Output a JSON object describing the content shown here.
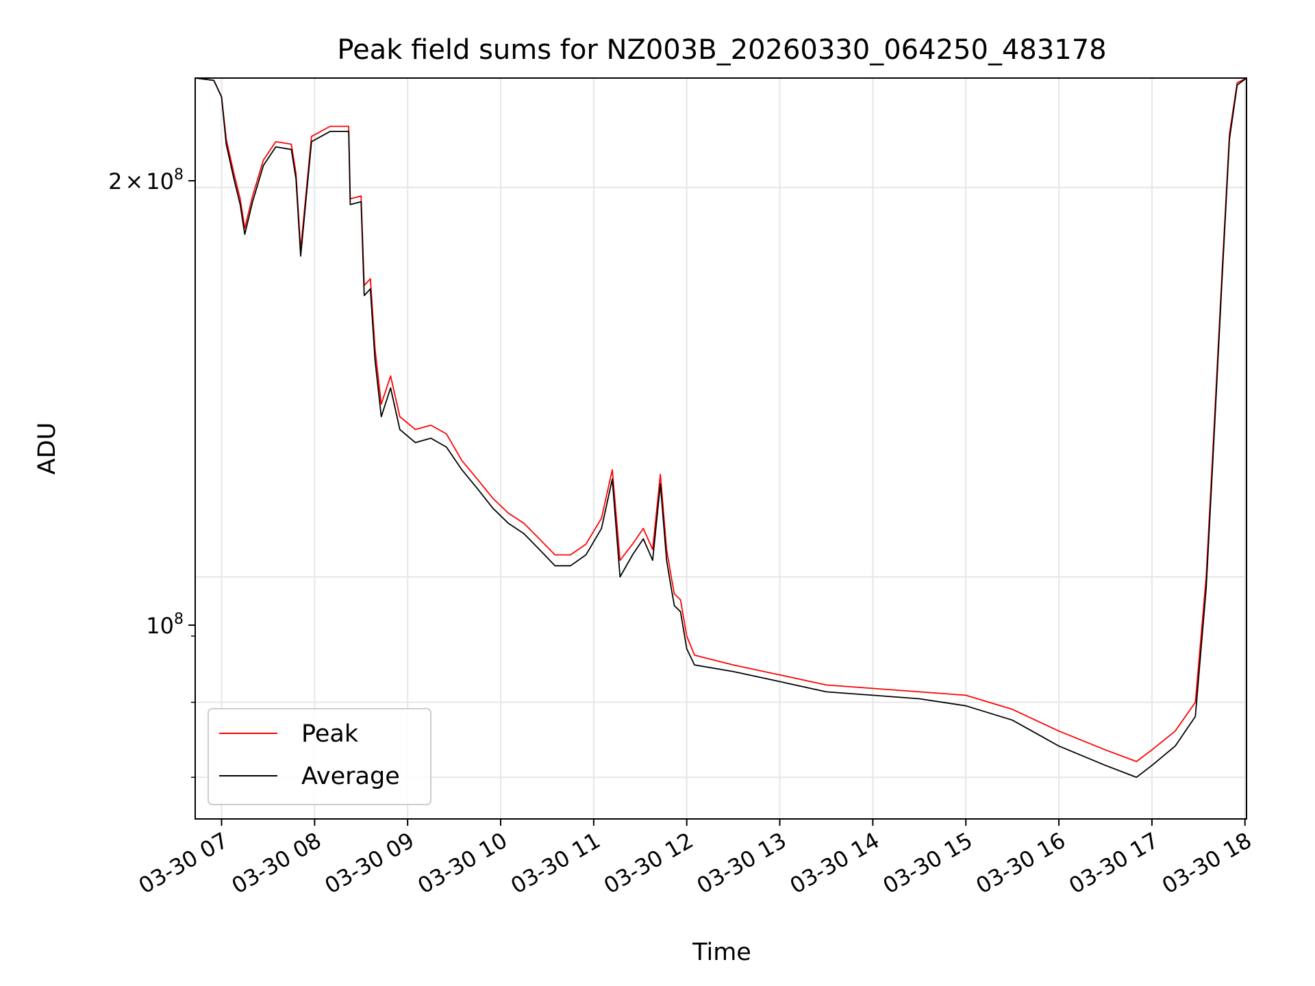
{
  "chart_data": {
    "type": "line",
    "title": "Peak field sums for NZ003B_20260330_064250_483178",
    "xlabel": "Time",
    "ylabel": "ADU",
    "yscale": "log",
    "xlim": [
      "2026-03-30 06:43",
      "2026-03-30 18:01"
    ],
    "ylim": [
      65000000,
      243000000
    ],
    "grid": true,
    "legend_position": "lower-left",
    "x_ticks": [
      "03-30 07",
      "03-30 08",
      "03-30 09",
      "03-30 10",
      "03-30 11",
      "03-30 12",
      "03-30 13",
      "03-30 14",
      "03-30 15",
      "03-30 16",
      "03-30 17",
      "03-30 18"
    ],
    "y_tick_labels": {
      "major_2e8_base": "2",
      "major_2e8_times": "×",
      "major_2e8_mantissa": "10",
      "major_2e8_exp": "8",
      "major_1e8_mantissa": "10",
      "major_1e8_exp": "8"
    },
    "series": [
      {
        "name": "Peak",
        "color": "#ff0000",
        "points": [
          [
            "2026-03-30 06:43",
            243000000
          ],
          [
            "2026-03-30 06:55",
            242000000
          ],
          [
            "2026-03-30 07:00",
            235000000
          ],
          [
            "2026-03-30 07:03",
            218000000
          ],
          [
            "2026-03-30 07:08",
            205000000
          ],
          [
            "2026-03-30 07:12",
            196000000
          ],
          [
            "2026-03-30 07:15",
            186000000
          ],
          [
            "2026-03-30 07:20",
            197000000
          ],
          [
            "2026-03-30 07:27",
            210000000
          ],
          [
            "2026-03-30 07:35",
            217000000
          ],
          [
            "2026-03-30 07:45",
            216000000
          ],
          [
            "2026-03-30 07:48",
            205000000
          ],
          [
            "2026-03-30 07:51",
            179000000
          ],
          [
            "2026-03-30 07:54",
            195000000
          ],
          [
            "2026-03-30 07:58",
            219000000
          ],
          [
            "2026-03-30 08:10",
            223000000
          ],
          [
            "2026-03-30 08:22",
            223000000
          ],
          [
            "2026-03-30 08:23",
            196000000
          ],
          [
            "2026-03-30 08:30",
            197000000
          ],
          [
            "2026-03-30 08:32",
            168000000
          ],
          [
            "2026-03-30 08:36",
            170000000
          ],
          [
            "2026-03-30 08:39",
            150000000
          ],
          [
            "2026-03-30 08:43",
            136000000
          ],
          [
            "2026-03-30 08:49",
            143000000
          ],
          [
            "2026-03-30 08:55",
            133000000
          ],
          [
            "2026-03-30 09:05",
            130000000
          ],
          [
            "2026-03-30 09:15",
            131000000
          ],
          [
            "2026-03-30 09:25",
            129000000
          ],
          [
            "2026-03-30 09:35",
            123000000
          ],
          [
            "2026-03-30 09:45",
            119000000
          ],
          [
            "2026-03-30 09:55",
            115000000
          ],
          [
            "2026-03-30 10:05",
            112000000
          ],
          [
            "2026-03-30 10:15",
            110000000
          ],
          [
            "2026-03-30 10:25",
            107000000
          ],
          [
            "2026-03-30 10:35",
            104000000
          ],
          [
            "2026-03-30 10:45",
            104000000
          ],
          [
            "2026-03-30 10:55",
            106000000
          ],
          [
            "2026-03-30 11:05",
            111000000
          ],
          [
            "2026-03-30 11:12",
            121000000
          ],
          [
            "2026-03-30 11:17",
            103000000
          ],
          [
            "2026-03-30 11:25",
            106000000
          ],
          [
            "2026-03-30 11:32",
            109000000
          ],
          [
            "2026-03-30 11:38",
            105000000
          ],
          [
            "2026-03-30 11:43",
            120000000
          ],
          [
            "2026-03-30 11:47",
            105000000
          ],
          [
            "2026-03-30 11:50",
            100000000
          ],
          [
            "2026-03-30 11:52",
            97000000
          ],
          [
            "2026-03-30 11:56",
            96000000
          ],
          [
            "2026-03-30 12:00",
            90000000
          ],
          [
            "2026-03-30 12:05",
            87000000
          ],
          [
            "2026-03-30 12:30",
            85500000
          ],
          [
            "2026-03-30 13:00",
            84000000
          ],
          [
            "2026-03-30 13:30",
            82500000
          ],
          [
            "2026-03-30 14:00",
            82000000
          ],
          [
            "2026-03-30 14:30",
            81500000
          ],
          [
            "2026-03-30 15:00",
            81000000
          ],
          [
            "2026-03-30 15:30",
            79000000
          ],
          [
            "2026-03-30 16:00",
            76000000
          ],
          [
            "2026-03-30 16:30",
            73500000
          ],
          [
            "2026-03-30 16:50",
            72000000
          ],
          [
            "2026-03-30 17:00",
            73500000
          ],
          [
            "2026-03-30 17:15",
            76000000
          ],
          [
            "2026-03-30 17:28",
            80000000
          ],
          [
            "2026-03-30 17:35",
            100000000
          ],
          [
            "2026-03-30 17:40",
            130000000
          ],
          [
            "2026-03-30 17:45",
            170000000
          ],
          [
            "2026-03-30 17:50",
            220000000
          ],
          [
            "2026-03-30 17:55",
            241000000
          ],
          [
            "2026-03-30 18:01",
            243000000
          ]
        ]
      },
      {
        "name": "Average",
        "color": "#000000",
        "points": [
          [
            "2026-03-30 06:43",
            243000000
          ],
          [
            "2026-03-30 06:55",
            242000000
          ],
          [
            "2026-03-30 07:00",
            235000000
          ],
          [
            "2026-03-30 07:03",
            216000000
          ],
          [
            "2026-03-30 07:08",
            203000000
          ],
          [
            "2026-03-30 07:12",
            194000000
          ],
          [
            "2026-03-30 07:15",
            184000000
          ],
          [
            "2026-03-30 07:20",
            195000000
          ],
          [
            "2026-03-30 07:27",
            208000000
          ],
          [
            "2026-03-30 07:35",
            215000000
          ],
          [
            "2026-03-30 07:45",
            214000000
          ],
          [
            "2026-03-30 07:48",
            203000000
          ],
          [
            "2026-03-30 07:51",
            177000000
          ],
          [
            "2026-03-30 07:54",
            193000000
          ],
          [
            "2026-03-30 07:58",
            217000000
          ],
          [
            "2026-03-30 08:10",
            221000000
          ],
          [
            "2026-03-30 08:22",
            221000000
          ],
          [
            "2026-03-30 08:23",
            194000000
          ],
          [
            "2026-03-30 08:30",
            195000000
          ],
          [
            "2026-03-30 08:32",
            165000000
          ],
          [
            "2026-03-30 08:36",
            167000000
          ],
          [
            "2026-03-30 08:39",
            147000000
          ],
          [
            "2026-03-30 08:43",
            133000000
          ],
          [
            "2026-03-30 08:49",
            140000000
          ],
          [
            "2026-03-30 08:55",
            130000000
          ],
          [
            "2026-03-30 09:05",
            127000000
          ],
          [
            "2026-03-30 09:15",
            128000000
          ],
          [
            "2026-03-30 09:25",
            126000000
          ],
          [
            "2026-03-30 09:35",
            121000000
          ],
          [
            "2026-03-30 09:45",
            117000000
          ],
          [
            "2026-03-30 09:55",
            113000000
          ],
          [
            "2026-03-30 10:05",
            110000000
          ],
          [
            "2026-03-30 10:15",
            108000000
          ],
          [
            "2026-03-30 10:25",
            105000000
          ],
          [
            "2026-03-30 10:35",
            102000000
          ],
          [
            "2026-03-30 10:45",
            102000000
          ],
          [
            "2026-03-30 10:55",
            104000000
          ],
          [
            "2026-03-30 11:05",
            109000000
          ],
          [
            "2026-03-30 11:12",
            119000000
          ],
          [
            "2026-03-30 11:17",
            100000000
          ],
          [
            "2026-03-30 11:25",
            104000000
          ],
          [
            "2026-03-30 11:32",
            107000000
          ],
          [
            "2026-03-30 11:38",
            103000000
          ],
          [
            "2026-03-30 11:43",
            118000000
          ],
          [
            "2026-03-30 11:47",
            103000000
          ],
          [
            "2026-03-30 11:50",
            98000000
          ],
          [
            "2026-03-30 11:52",
            95000000
          ],
          [
            "2026-03-30 11:56",
            94000000
          ],
          [
            "2026-03-30 12:00",
            88000000
          ],
          [
            "2026-03-30 12:05",
            85500000
          ],
          [
            "2026-03-30 12:30",
            84500000
          ],
          [
            "2026-03-30 13:00",
            83000000
          ],
          [
            "2026-03-30 13:30",
            81500000
          ],
          [
            "2026-03-30 14:00",
            81000000
          ],
          [
            "2026-03-30 14:30",
            80500000
          ],
          [
            "2026-03-30 15:00",
            79500000
          ],
          [
            "2026-03-30 15:30",
            77500000
          ],
          [
            "2026-03-30 16:00",
            74000000
          ],
          [
            "2026-03-30 16:30",
            71500000
          ],
          [
            "2026-03-30 16:50",
            70000000
          ],
          [
            "2026-03-30 17:00",
            71500000
          ],
          [
            "2026-03-30 17:15",
            74000000
          ],
          [
            "2026-03-30 17:28",
            78000000
          ],
          [
            "2026-03-30 17:35",
            98000000
          ],
          [
            "2026-03-30 17:40",
            128000000
          ],
          [
            "2026-03-30 17:45",
            168000000
          ],
          [
            "2026-03-30 17:50",
            218000000
          ],
          [
            "2026-03-30 17:55",
            240000000
          ],
          [
            "2026-03-30 18:01",
            243000000
          ]
        ]
      }
    ]
  }
}
